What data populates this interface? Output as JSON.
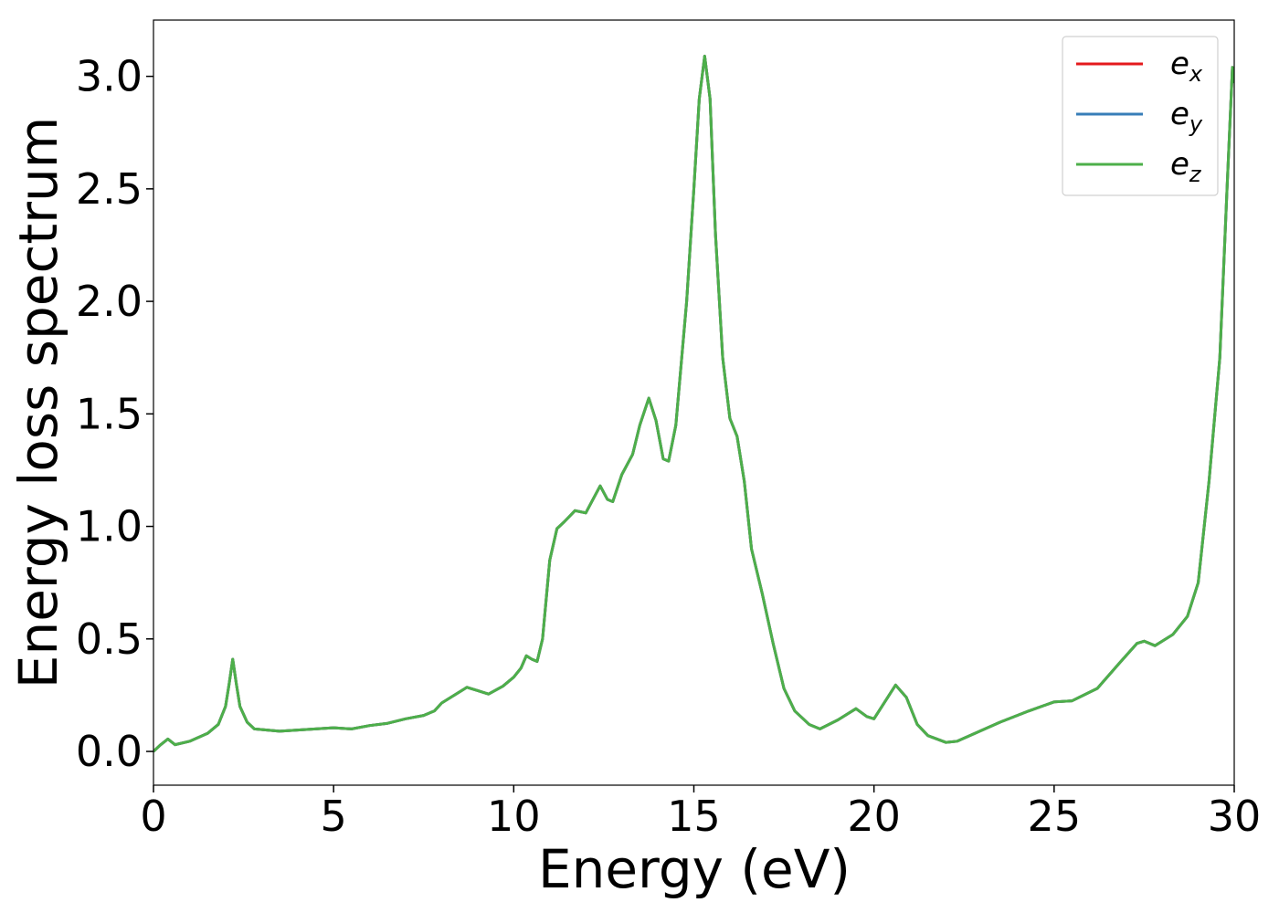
{
  "chart_data": {
    "type": "line",
    "xlabel": "Energy (eV)",
    "ylabel": "Energy loss spectrum",
    "xlim": [
      0,
      30
    ],
    "ylim": [
      -0.15,
      3.25
    ],
    "xticks": [
      0,
      5,
      10,
      15,
      20,
      25,
      30
    ],
    "yticks": [
      {
        "value": 0,
        "label": "0.0"
      },
      0.5,
      {
        "value": 1,
        "label": "1.0"
      },
      1.5,
      {
        "value": 2,
        "label": "2.0"
      },
      2.5,
      {
        "value": 3,
        "label": "3.0"
      }
    ],
    "legend": "upper right",
    "x": [
      0,
      0.2,
      0.4,
      0.6,
      1.0,
      1.5,
      1.8,
      2.0,
      2.1,
      2.2,
      2.3,
      2.4,
      2.6,
      2.8,
      3.5,
      4.0,
      5.0,
      5.5,
      6.0,
      6.5,
      7.0,
      7.5,
      7.8,
      8.0,
      8.3,
      8.7,
      9.0,
      9.3,
      9.7,
      10.0,
      10.2,
      10.35,
      10.5,
      10.65,
      10.8,
      11.0,
      11.2,
      11.4,
      11.7,
      12.0,
      12.2,
      12.4,
      12.6,
      12.75,
      13.0,
      13.3,
      13.5,
      13.75,
      13.95,
      14.15,
      14.3,
      14.5,
      14.8,
      15.0,
      15.15,
      15.3,
      15.45,
      15.6,
      15.8,
      16.0,
      16.2,
      16.4,
      16.6,
      16.9,
      17.2,
      17.5,
      17.8,
      18.2,
      18.5,
      19.0,
      19.5,
      19.8,
      20.0,
      20.3,
      20.6,
      20.9,
      21.2,
      21.5,
      22.0,
      22.3,
      22.8,
      23.5,
      24.3,
      25.0,
      25.5,
      26.2,
      26.8,
      27.3,
      27.5,
      27.8,
      28.3,
      28.7,
      29.0,
      29.3,
      29.6,
      29.8,
      29.95,
      30.0
    ],
    "series": [
      {
        "name": "e_x",
        "color": "#e41a1c",
        "values": [
          0.0,
          0.03,
          0.055,
          0.03,
          0.045,
          0.08,
          0.12,
          0.2,
          0.3,
          0.41,
          0.3,
          0.2,
          0.13,
          0.1,
          0.09,
          0.095,
          0.105,
          0.1,
          0.115,
          0.125,
          0.145,
          0.16,
          0.18,
          0.215,
          0.245,
          0.285,
          0.27,
          0.255,
          0.29,
          0.33,
          0.37,
          0.425,
          0.41,
          0.4,
          0.5,
          0.85,
          0.99,
          1.02,
          1.07,
          1.06,
          1.12,
          1.18,
          1.12,
          1.11,
          1.23,
          1.32,
          1.45,
          1.57,
          1.47,
          1.3,
          1.29,
          1.45,
          2.0,
          2.5,
          2.9,
          3.09,
          2.9,
          2.3,
          1.75,
          1.48,
          1.4,
          1.2,
          0.9,
          0.7,
          0.48,
          0.28,
          0.18,
          0.12,
          0.1,
          0.14,
          0.19,
          0.155,
          0.145,
          0.22,
          0.295,
          0.24,
          0.12,
          0.07,
          0.04,
          0.045,
          0.08,
          0.13,
          0.18,
          0.22,
          0.225,
          0.28,
          0.39,
          0.48,
          0.49,
          0.47,
          0.52,
          0.6,
          0.75,
          1.2,
          1.75,
          2.5,
          3.04,
          2.97
        ]
      },
      {
        "name": "e_y",
        "color": "#377eb8",
        "values": [
          0.0,
          0.03,
          0.055,
          0.03,
          0.045,
          0.08,
          0.12,
          0.2,
          0.3,
          0.41,
          0.3,
          0.2,
          0.13,
          0.1,
          0.09,
          0.095,
          0.105,
          0.1,
          0.115,
          0.125,
          0.145,
          0.16,
          0.18,
          0.215,
          0.245,
          0.285,
          0.27,
          0.255,
          0.29,
          0.33,
          0.37,
          0.425,
          0.41,
          0.4,
          0.5,
          0.85,
          0.99,
          1.02,
          1.07,
          1.06,
          1.12,
          1.18,
          1.12,
          1.11,
          1.23,
          1.32,
          1.45,
          1.57,
          1.47,
          1.3,
          1.29,
          1.45,
          2.0,
          2.5,
          2.9,
          3.09,
          2.9,
          2.3,
          1.75,
          1.48,
          1.4,
          1.2,
          0.9,
          0.7,
          0.48,
          0.28,
          0.18,
          0.12,
          0.1,
          0.14,
          0.19,
          0.155,
          0.145,
          0.22,
          0.295,
          0.24,
          0.12,
          0.07,
          0.04,
          0.045,
          0.08,
          0.13,
          0.18,
          0.22,
          0.225,
          0.28,
          0.39,
          0.48,
          0.49,
          0.47,
          0.52,
          0.6,
          0.75,
          1.2,
          1.75,
          2.5,
          3.04,
          2.97
        ]
      },
      {
        "name": "e_z",
        "color": "#4daf4a",
        "values": [
          0.0,
          0.03,
          0.055,
          0.03,
          0.045,
          0.08,
          0.12,
          0.2,
          0.3,
          0.41,
          0.3,
          0.2,
          0.13,
          0.1,
          0.09,
          0.095,
          0.105,
          0.1,
          0.115,
          0.125,
          0.145,
          0.16,
          0.18,
          0.215,
          0.245,
          0.285,
          0.27,
          0.255,
          0.29,
          0.33,
          0.37,
          0.425,
          0.41,
          0.4,
          0.5,
          0.85,
          0.99,
          1.02,
          1.07,
          1.06,
          1.12,
          1.18,
          1.12,
          1.11,
          1.23,
          1.32,
          1.45,
          1.57,
          1.47,
          1.3,
          1.29,
          1.45,
          2.0,
          2.5,
          2.9,
          3.09,
          2.9,
          2.3,
          1.75,
          1.48,
          1.4,
          1.2,
          0.9,
          0.7,
          0.48,
          0.28,
          0.18,
          0.12,
          0.1,
          0.14,
          0.19,
          0.155,
          0.145,
          0.22,
          0.295,
          0.24,
          0.12,
          0.07,
          0.04,
          0.045,
          0.08,
          0.13,
          0.18,
          0.22,
          0.225,
          0.28,
          0.39,
          0.48,
          0.49,
          0.47,
          0.52,
          0.6,
          0.75,
          1.2,
          1.75,
          2.5,
          3.04,
          2.97
        ]
      }
    ]
  }
}
